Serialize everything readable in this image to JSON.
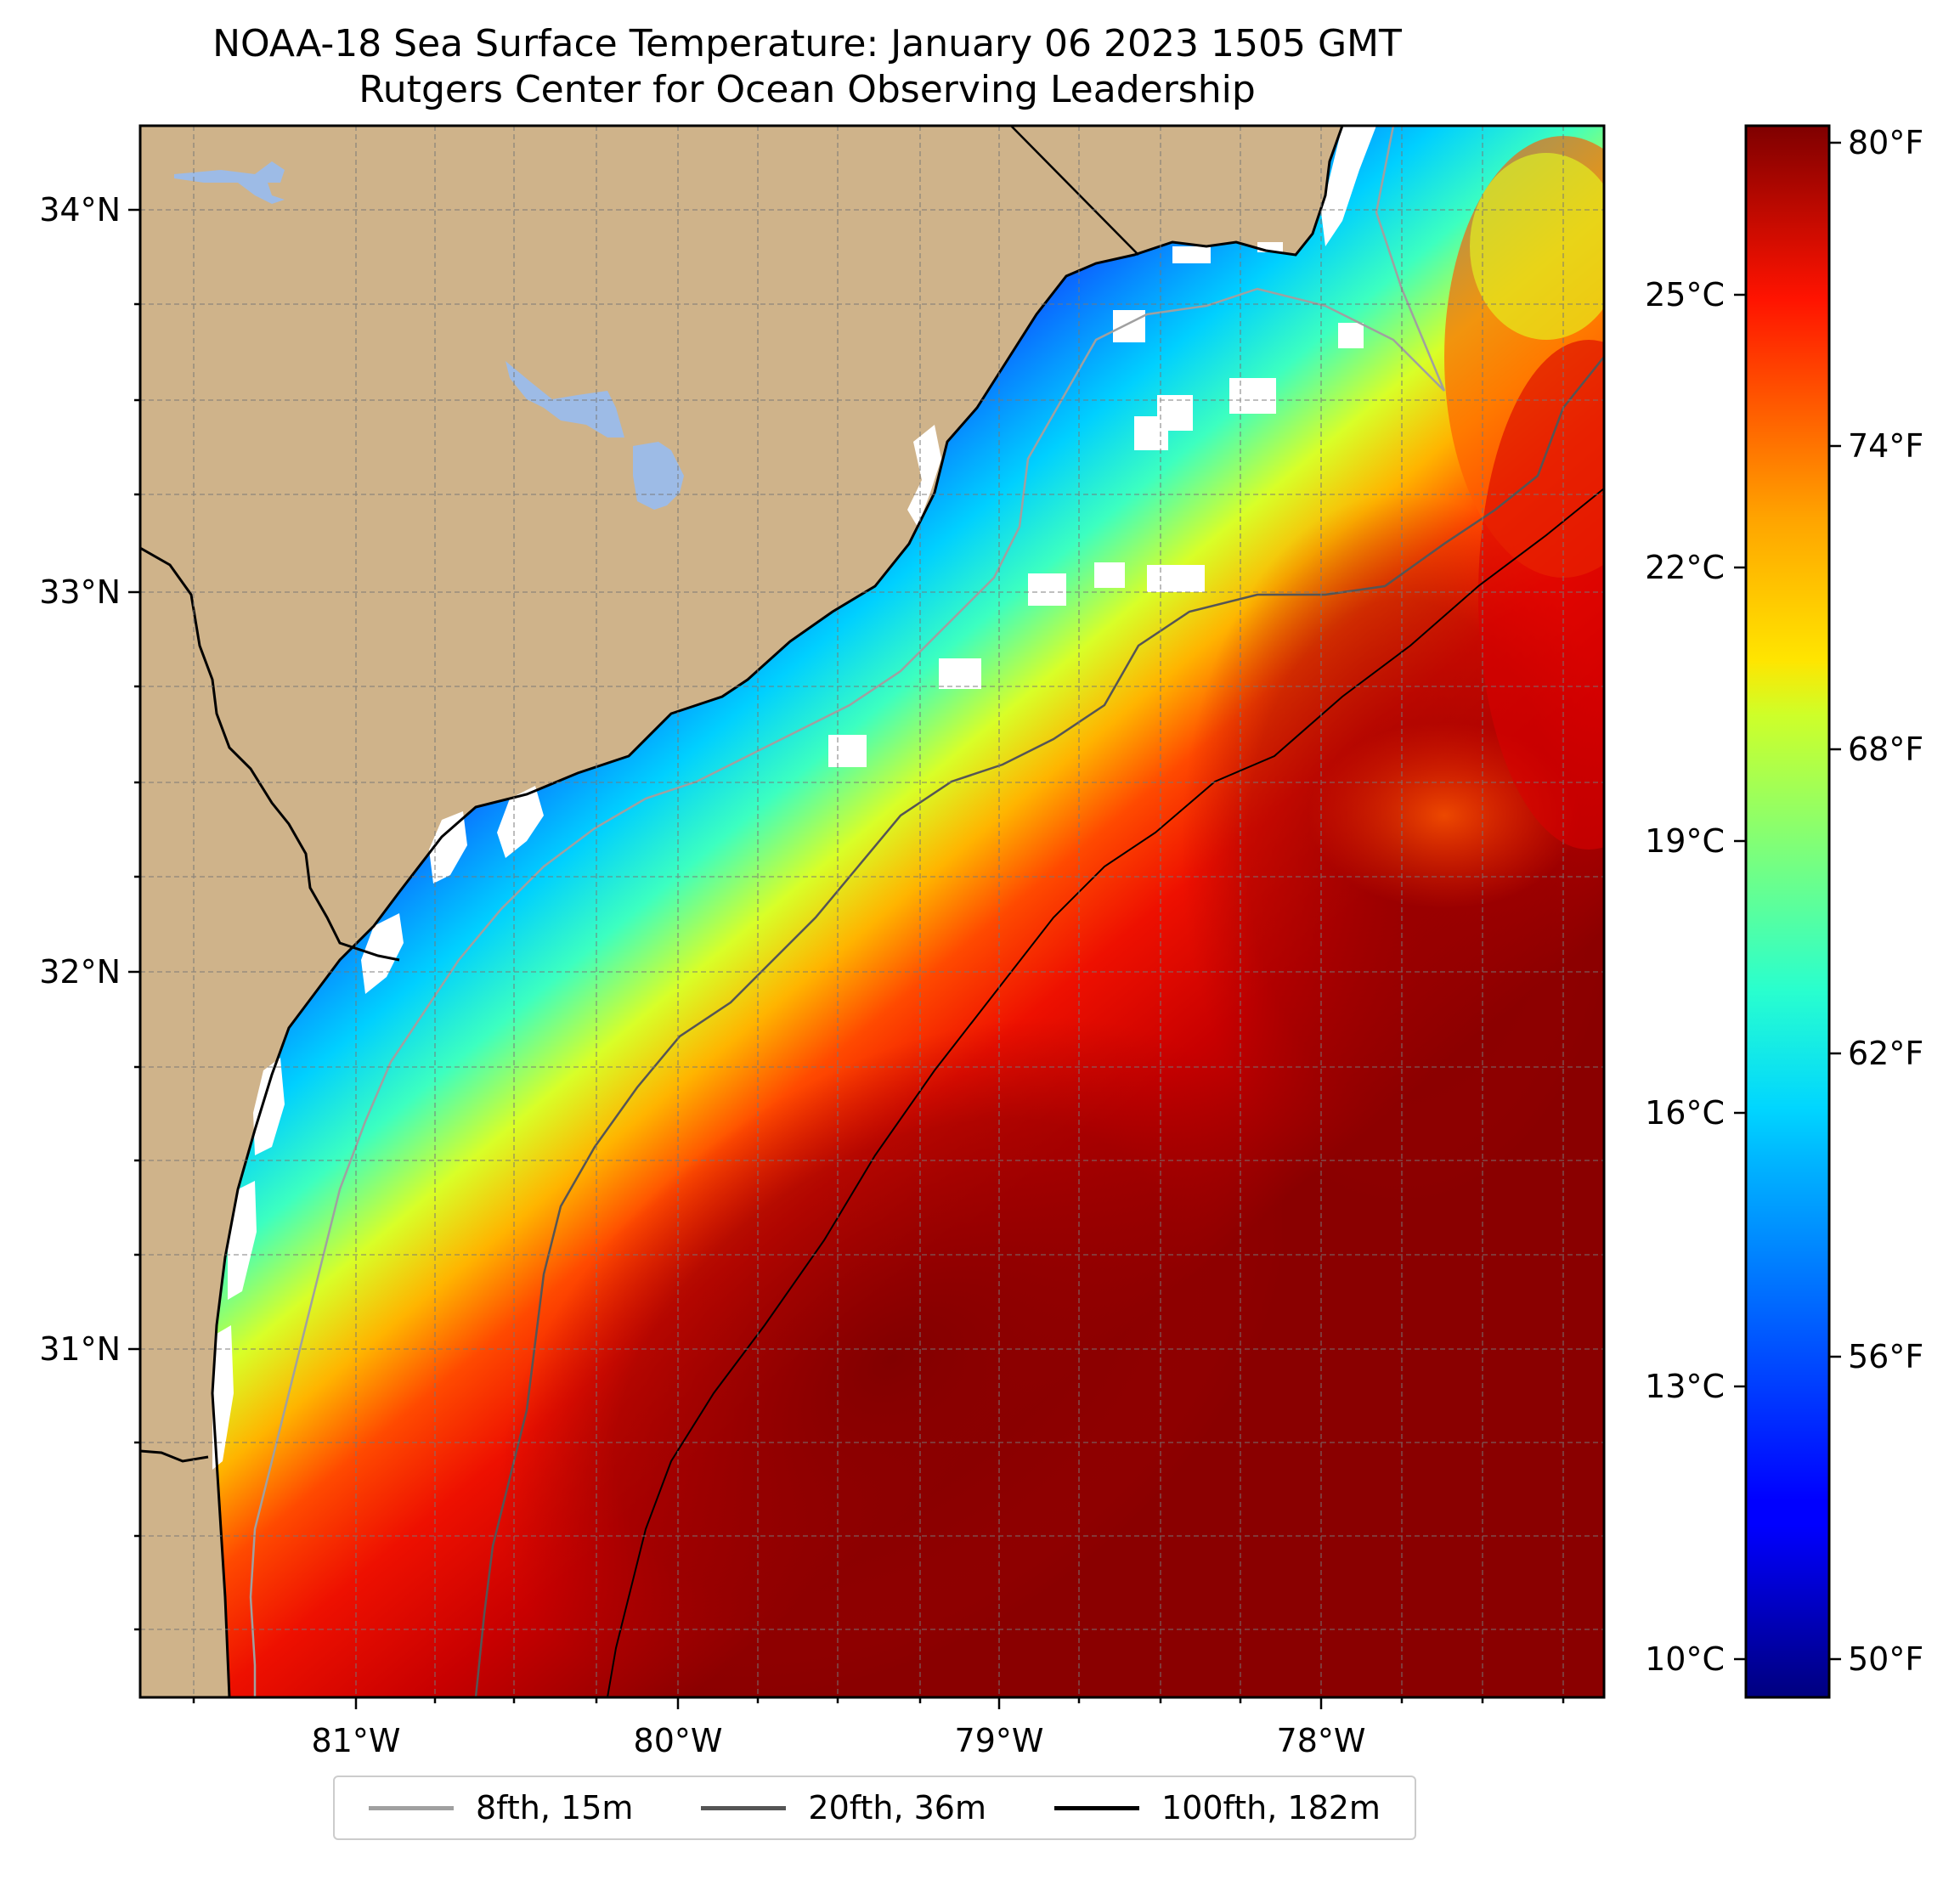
{
  "title": {
    "line1": "NOAA-18 Sea Surface Temperature: January 06 2023 1505 GMT",
    "line2": "Rutgers Center for Ocean Observing Leadership"
  },
  "map": {
    "lon_labels": [
      "81°W",
      "80°W",
      "79°W",
      "78°W"
    ],
    "lat_labels": [
      "34°N",
      "33°N",
      "32°N",
      "31°N"
    ],
    "land_color": "#cfb38a",
    "lake_color": "#9dbbe6"
  },
  "colorbar": {
    "celsius_labels": [
      "25°C",
      "22°C",
      "19°C",
      "16°C",
      "13°C",
      "10°C"
    ],
    "fahrenheit_labels": [
      "80°F",
      "74°F",
      "68°F",
      "62°F",
      "56°F",
      "50°F"
    ],
    "colormap": "jet"
  },
  "legend": {
    "items": [
      {
        "label": "8fth, 15m",
        "color": "#a0a0a0"
      },
      {
        "label": "20fth, 36m",
        "color": "#555555"
      },
      {
        "label": "100fth, 182m",
        "color": "#000000"
      }
    ]
  }
}
